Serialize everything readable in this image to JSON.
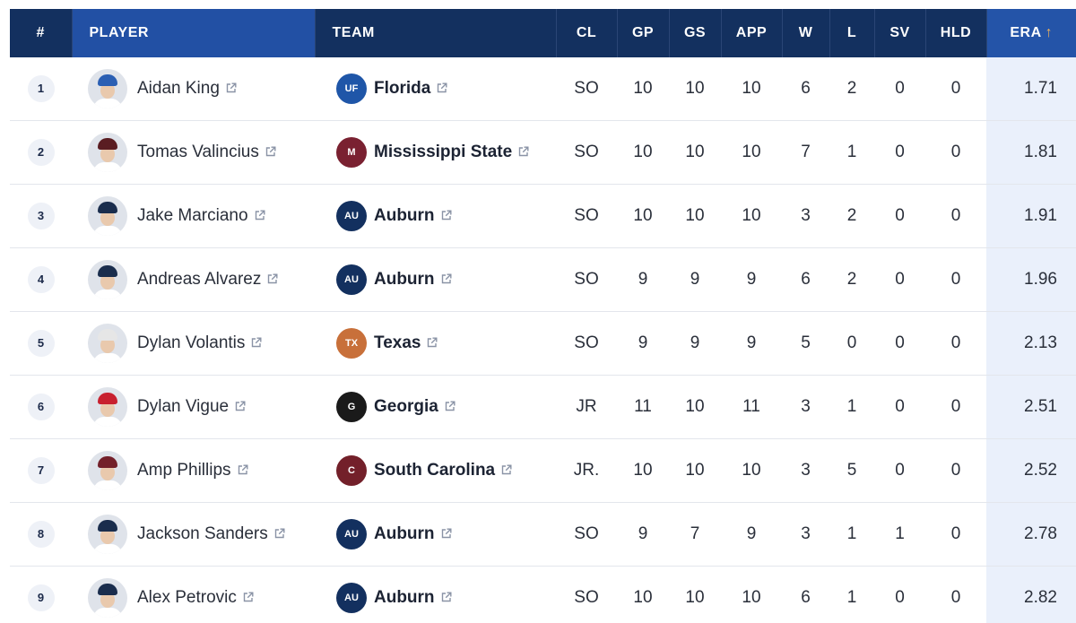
{
  "table": {
    "headers": [
      "#",
      "PLAYER",
      "TEAM",
      "CL",
      "GP",
      "GS",
      "APP",
      "W",
      "L",
      "SV",
      "HLD",
      "ERA"
    ],
    "sort_indicator": "↑",
    "rows": [
      {
        "rank": "1",
        "player": "Aidan King",
        "team": "Florida",
        "logo_text": "UF",
        "logo_color": "#1f56a8",
        "cap_color": "#2b5fb3",
        "cl": "SO",
        "gp": "10",
        "gs": "10",
        "app": "10",
        "w": "6",
        "l": "2",
        "sv": "0",
        "hld": "0",
        "era": "1.71"
      },
      {
        "rank": "2",
        "player": "Tomas Valincius",
        "team": "Mississippi State",
        "logo_text": "M",
        "logo_color": "#7a2131",
        "cap_color": "#5a1d22",
        "cl": "SO",
        "gp": "10",
        "gs": "10",
        "app": "10",
        "w": "7",
        "l": "1",
        "sv": "0",
        "hld": "0",
        "era": "1.81"
      },
      {
        "rank": "3",
        "player": "Jake Marciano",
        "team": "Auburn",
        "logo_text": "AU",
        "logo_color": "#13305f",
        "cap_color": "#1a2d4d",
        "cl": "SO",
        "gp": "10",
        "gs": "10",
        "app": "10",
        "w": "3",
        "l": "2",
        "sv": "0",
        "hld": "0",
        "era": "1.91"
      },
      {
        "rank": "4",
        "player": "Andreas Alvarez",
        "team": "Auburn",
        "logo_text": "AU",
        "logo_color": "#13305f",
        "cap_color": "#1a2d4d",
        "cl": "SO",
        "gp": "9",
        "gs": "9",
        "app": "9",
        "w": "6",
        "l": "2",
        "sv": "0",
        "hld": "0",
        "era": "1.96"
      },
      {
        "rank": "5",
        "player": "Dylan Volantis",
        "team": "Texas",
        "logo_text": "TX",
        "logo_color": "#c8703a",
        "cap_color": "#e6e6e6",
        "cl": "SO",
        "gp": "9",
        "gs": "9",
        "app": "9",
        "w": "5",
        "l": "0",
        "sv": "0",
        "hld": "0",
        "era": "2.13"
      },
      {
        "rank": "6",
        "player": "Dylan Vigue",
        "team": "Georgia",
        "logo_text": "G",
        "logo_color": "#1a1a1a",
        "cap_color": "#c8202f",
        "cl": "JR",
        "gp": "11",
        "gs": "10",
        "app": "11",
        "w": "3",
        "l": "1",
        "sv": "0",
        "hld": "0",
        "era": "2.51"
      },
      {
        "rank": "7",
        "player": "Amp Phillips",
        "team": "South Carolina",
        "logo_text": "C",
        "logo_color": "#73202a",
        "cap_color": "#73202a",
        "cl": "JR.",
        "gp": "10",
        "gs": "10",
        "app": "10",
        "w": "3",
        "l": "5",
        "sv": "0",
        "hld": "0",
        "era": "2.52"
      },
      {
        "rank": "8",
        "player": "Jackson Sanders",
        "team": "Auburn",
        "logo_text": "AU",
        "logo_color": "#13305f",
        "cap_color": "#1a2d4d",
        "cl": "SO",
        "gp": "9",
        "gs": "7",
        "app": "9",
        "w": "3",
        "l": "1",
        "sv": "1",
        "hld": "0",
        "era": "2.78"
      },
      {
        "rank": "9",
        "player": "Alex Petrovic",
        "team": "Auburn",
        "logo_text": "AU",
        "logo_color": "#13305f",
        "cap_color": "#1a2d4d",
        "cl": "SO",
        "gp": "10",
        "gs": "10",
        "app": "10",
        "w": "6",
        "l": "1",
        "sv": "0",
        "hld": "0",
        "era": "2.82"
      }
    ]
  }
}
